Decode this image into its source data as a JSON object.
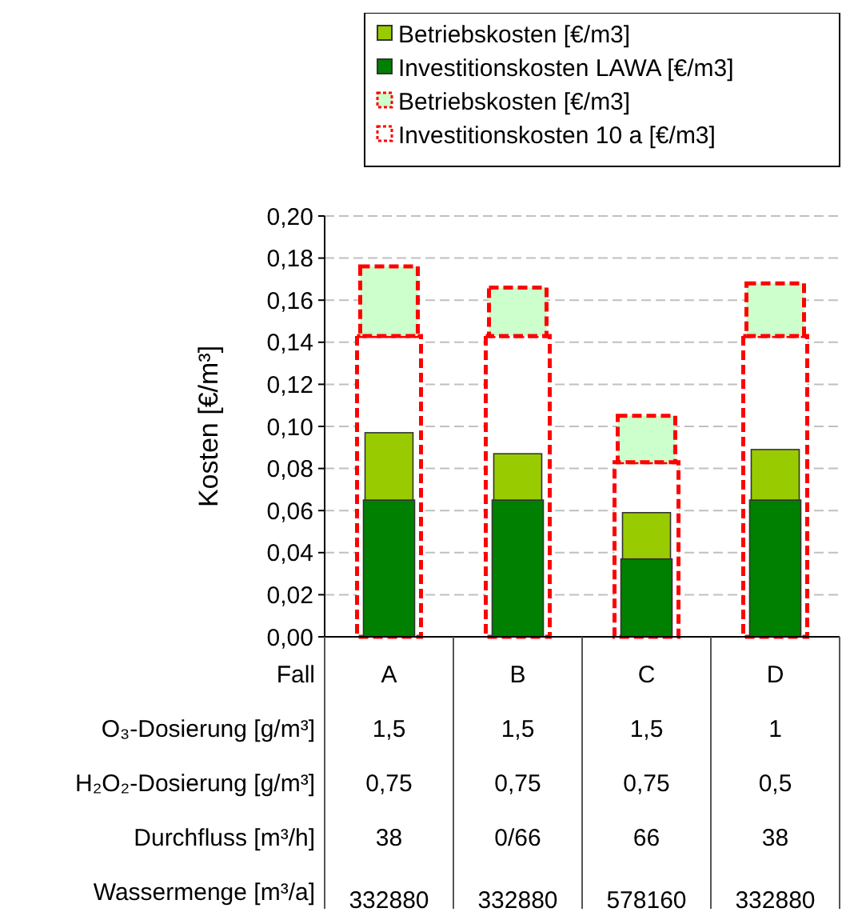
{
  "chart_data": {
    "type": "bar",
    "xlabel": "Fall",
    "ylabel": "Kosten [€/m³]",
    "categories": [
      "A",
      "B",
      "C",
      "D"
    ],
    "series": [
      {
        "name": "Betriebskosten [€/m3]",
        "color": "#99cc00",
        "values": [
          0.032,
          0.022,
          0.022,
          0.024
        ],
        "base": [
          0.065,
          0.065,
          0.037,
          0.065
        ]
      },
      {
        "name": "Investitionskosten LAWA  [€/m3]",
        "color": "#008000",
        "values": [
          0.065,
          0.065,
          0.037,
          0.065
        ]
      },
      {
        "name": "Betriebskosten [€/m3]",
        "color": "#ccffcc",
        "line_style": "dashed",
        "values": [
          0.033,
          0.023,
          0.022,
          0.025
        ],
        "base": [
          0.143,
          0.143,
          0.083,
          0.143
        ]
      },
      {
        "name": "Investitionskosten 10 a [€/m3]",
        "color": "#ffffff",
        "line_style": "dashed",
        "values": [
          0.143,
          0.143,
          0.083,
          0.143
        ]
      }
    ],
    "ylim": [
      0,
      0.2
    ],
    "yticks": [
      {
        "value": 0,
        "label": "0,00"
      },
      {
        "value": 0.02,
        "label": "0,02"
      },
      {
        "value": 0.04,
        "label": "0,04"
      },
      {
        "value": 0.06,
        "label": "0,06"
      },
      {
        "value": 0.08,
        "label": "0,08"
      },
      {
        "value": 0.1,
        "label": "0,10"
      },
      {
        "value": 0.12,
        "label": "0,12"
      },
      {
        "value": 0.14,
        "label": "0,14"
      },
      {
        "value": 0.16,
        "label": "0,16"
      },
      {
        "value": 0.18,
        "label": "0,18"
      },
      {
        "value": 0.2,
        "label": "0,20"
      }
    ],
    "grid": "y",
    "legend": "top",
    "annotations": [
      "O₃-Dosierung [g/m³]",
      "1,5",
      "1,5",
      "1,5",
      "1",
      "H₂O₂-Dosierung [g/m³]",
      "0,75",
      "0,75",
      "0,75",
      "0,5",
      "Durchfluss [m³/h]",
      "38",
      "0/66",
      "66",
      "38",
      "Wassermenge [m³/a]",
      "332880",
      "332880",
      "578160",
      "332880"
    ]
  }
}
